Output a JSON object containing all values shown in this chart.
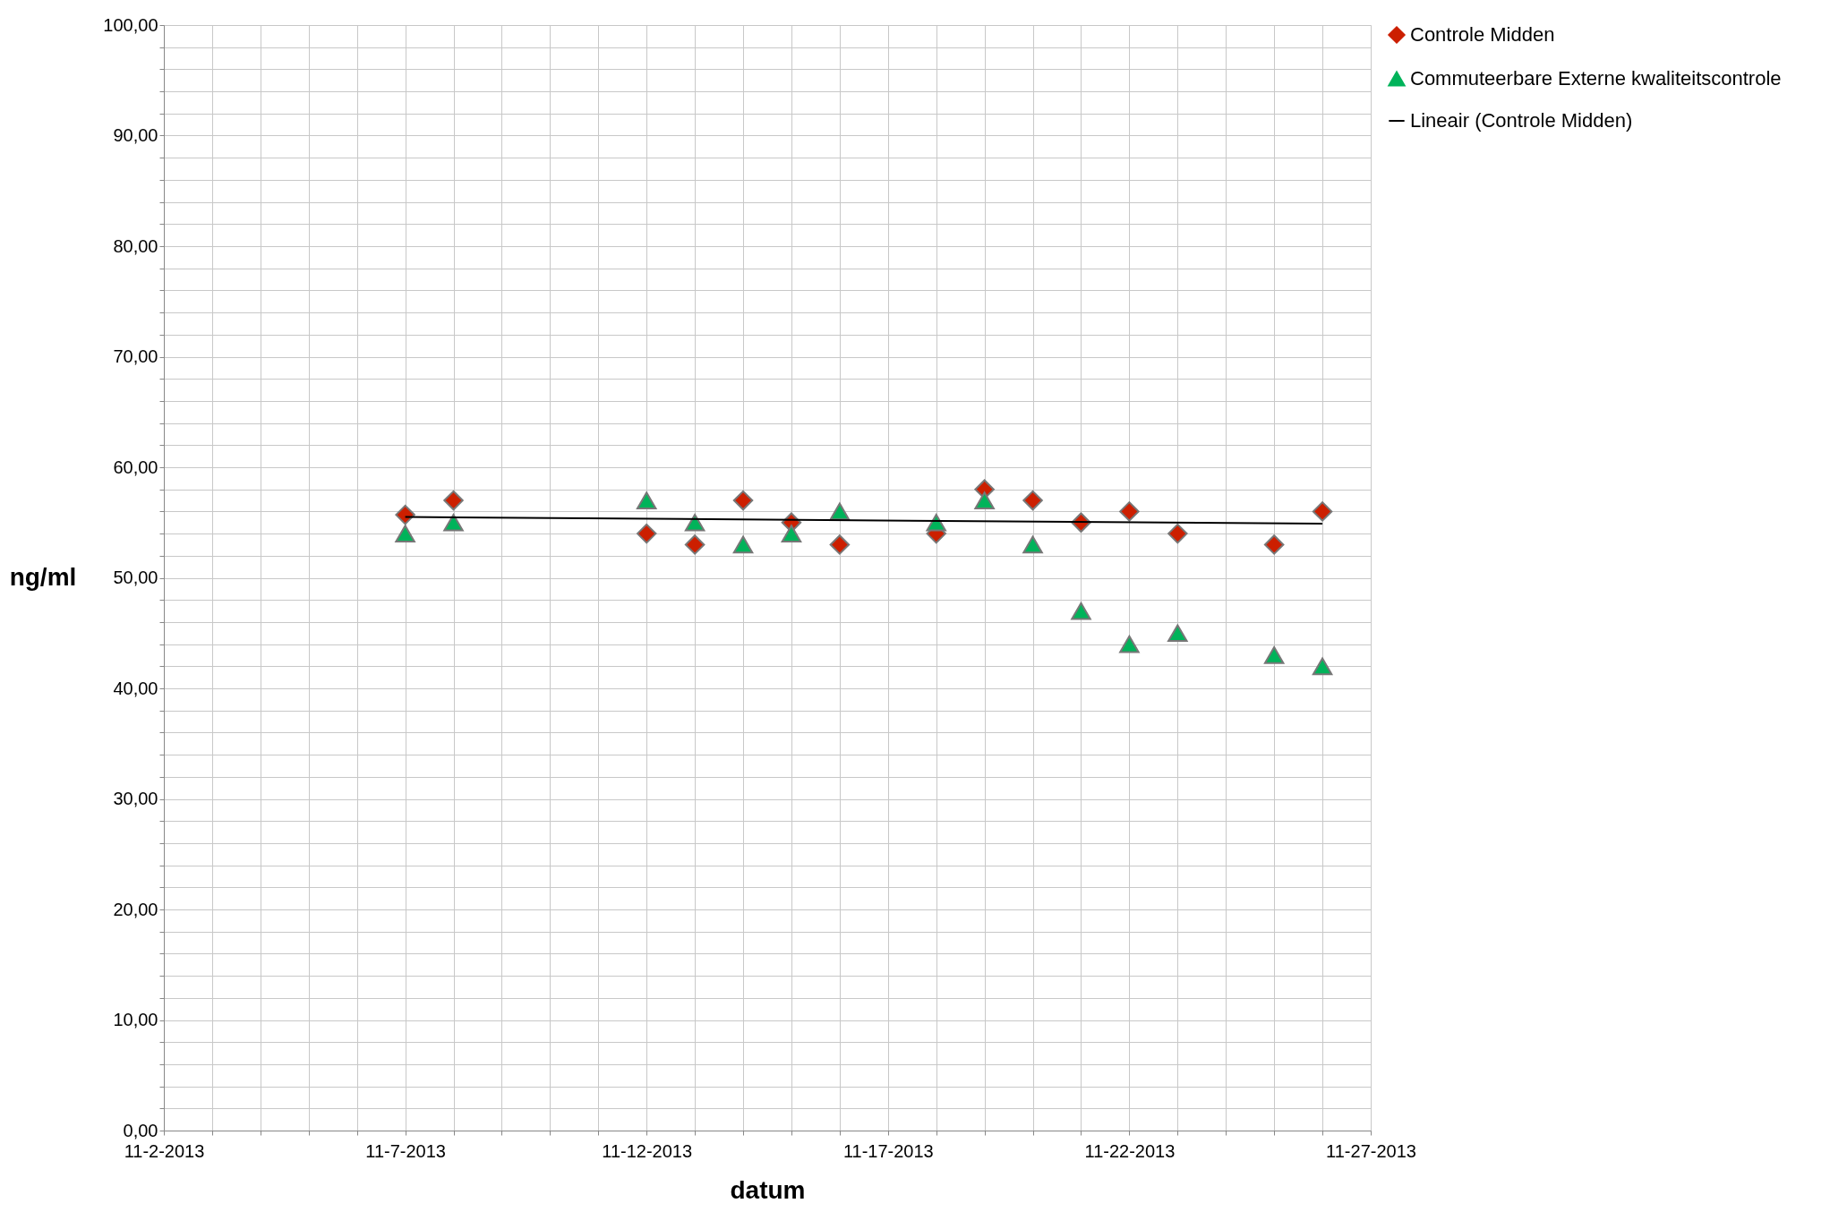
{
  "chart_data": {
    "type": "scatter",
    "xlabel": "datum",
    "ylabel": "ng/ml",
    "x": [
      "2013-11-07",
      "2013-11-08",
      "2013-11-12",
      "2013-11-13",
      "2013-11-14",
      "2013-11-15",
      "2013-11-16",
      "2013-11-18",
      "2013-11-19",
      "2013-11-20",
      "2013-11-21",
      "2013-11-22",
      "2013-11-23",
      "2013-11-25",
      "2013-11-26"
    ],
    "series": [
      {
        "name": "Controle Midden",
        "color": "#cc1f00",
        "marker": "diamond",
        "values": [
          55.7,
          57,
          54,
          53,
          57,
          55,
          53,
          54,
          58,
          57,
          55,
          56,
          54,
          53,
          56
        ]
      },
      {
        "name": "Commuteerbare Externe kwaliteitscontrole",
        "color": "#00b35a",
        "marker": "triangle",
        "values": [
          54,
          55,
          57,
          55,
          53,
          54,
          56,
          55,
          57,
          53,
          47,
          44,
          45,
          43,
          42
        ]
      },
      {
        "name": "Lineair (Controle Midden)",
        "type": "line",
        "color": "#000000",
        "marker": "none",
        "x": [
          "2013-11-07",
          "2013-11-26"
        ],
        "values": [
          55.5,
          54.9
        ]
      }
    ],
    "xlim": [
      "2013-11-02",
      "2013-11-27"
    ],
    "xticks": [
      {
        "value": "2013-11-02",
        "label": "11-2-2013"
      },
      {
        "value": "2013-11-03",
        "label": null
      },
      {
        "value": "2013-11-04",
        "label": null
      },
      {
        "value": "2013-11-05",
        "label": null
      },
      {
        "value": "2013-11-06",
        "label": null
      },
      {
        "value": "2013-11-07",
        "label": "11-7-2013"
      },
      {
        "value": "2013-11-08",
        "label": null
      },
      {
        "value": "2013-11-09",
        "label": null
      },
      {
        "value": "2013-11-10",
        "label": null
      },
      {
        "value": "2013-11-11",
        "label": null
      },
      {
        "value": "2013-11-12",
        "label": "11-12-2013"
      },
      {
        "value": "2013-11-13",
        "label": null
      },
      {
        "value": "2013-11-14",
        "label": null
      },
      {
        "value": "2013-11-15",
        "label": null
      },
      {
        "value": "2013-11-16",
        "label": null
      },
      {
        "value": "2013-11-17",
        "label": "11-17-2013"
      },
      {
        "value": "2013-11-18",
        "label": null
      },
      {
        "value": "2013-11-19",
        "label": null
      },
      {
        "value": "2013-11-20",
        "label": null
      },
      {
        "value": "2013-11-21",
        "label": null
      },
      {
        "value": "2013-11-22",
        "label": "11-22-2013"
      },
      {
        "value": "2013-11-23",
        "label": null
      },
      {
        "value": "2013-11-24",
        "label": null
      },
      {
        "value": "2013-11-25",
        "label": null
      },
      {
        "value": "2013-11-26",
        "label": null
      },
      {
        "value": "2013-11-27",
        "label": "11-27-2013"
      }
    ],
    "ylim": [
      0,
      100
    ],
    "yticks": [
      {
        "value": 0,
        "label": "0,00"
      },
      {
        "value": 2,
        "label": null
      },
      {
        "value": 4,
        "label": null
      },
      {
        "value": 6,
        "label": null
      },
      {
        "value": 8,
        "label": null
      },
      {
        "value": 10,
        "label": "10,00"
      },
      {
        "value": 12,
        "label": null
      },
      {
        "value": 14,
        "label": null
      },
      {
        "value": 16,
        "label": null
      },
      {
        "value": 18,
        "label": null
      },
      {
        "value": 20,
        "label": "20,00"
      },
      {
        "value": 22,
        "label": null
      },
      {
        "value": 24,
        "label": null
      },
      {
        "value": 26,
        "label": null
      },
      {
        "value": 28,
        "label": null
      },
      {
        "value": 30,
        "label": "30,00"
      },
      {
        "value": 32,
        "label": null
      },
      {
        "value": 34,
        "label": null
      },
      {
        "value": 36,
        "label": null
      },
      {
        "value": 38,
        "label": null
      },
      {
        "value": 40,
        "label": "40,00"
      },
      {
        "value": 42,
        "label": null
      },
      {
        "value": 44,
        "label": null
      },
      {
        "value": 46,
        "label": null
      },
      {
        "value": 48,
        "label": null
      },
      {
        "value": 50,
        "label": "50,00"
      },
      {
        "value": 52,
        "label": null
      },
      {
        "value": 54,
        "label": null
      },
      {
        "value": 56,
        "label": null
      },
      {
        "value": 58,
        "label": null
      },
      {
        "value": 60,
        "label": "60,00"
      },
      {
        "value": 62,
        "label": null
      },
      {
        "value": 64,
        "label": null
      },
      {
        "value": 66,
        "label": null
      },
      {
        "value": 68,
        "label": null
      },
      {
        "value": 70,
        "label": "70,00"
      },
      {
        "value": 72,
        "label": null
      },
      {
        "value": 74,
        "label": null
      },
      {
        "value": 76,
        "label": null
      },
      {
        "value": 78,
        "label": null
      },
      {
        "value": 80,
        "label": "80,00"
      },
      {
        "value": 82,
        "label": null
      },
      {
        "value": 84,
        "label": null
      },
      {
        "value": 86,
        "label": null
      },
      {
        "value": 88,
        "label": null
      },
      {
        "value": 90,
        "label": "90,00"
      },
      {
        "value": 92,
        "label": null
      },
      {
        "value": 94,
        "label": null
      },
      {
        "value": 96,
        "label": null
      },
      {
        "value": 98,
        "label": null
      },
      {
        "value": 100,
        "label": "100,00"
      }
    ],
    "grid": true,
    "legend": "right"
  }
}
